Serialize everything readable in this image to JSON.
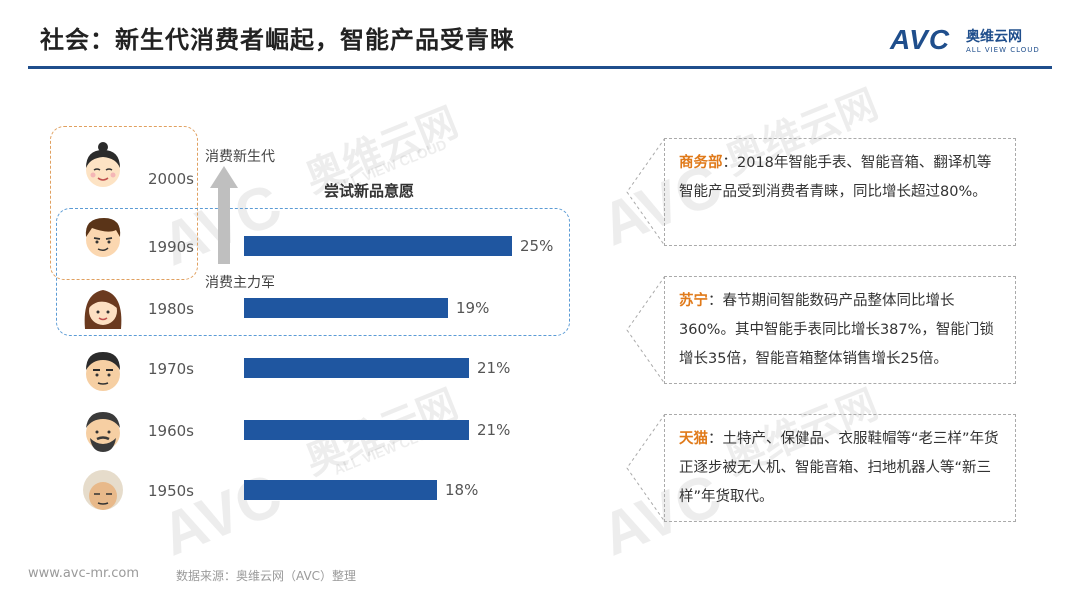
{
  "header": {
    "title": "社会：新生代消费者崛起，智能产品受青睐",
    "logo_avc": "AVC",
    "logo_cn": "奥维云网",
    "logo_en": "ALL VIEW CLOUD"
  },
  "watermark": {
    "cn": "奥维云网",
    "en": "ALL VIEW CLOUD",
    "avc": "AVC"
  },
  "chart": {
    "title": "尝试新品意愿",
    "label_new_gen": "消费新生代",
    "label_main_force": "消费主力军"
  },
  "chart_data": {
    "type": "bar",
    "title": "尝试新品意愿",
    "categories": [
      "2000s",
      "1990s",
      "1980s",
      "1970s",
      "1960s",
      "1950s"
    ],
    "values": [
      null,
      25,
      19,
      21,
      21,
      18
    ],
    "labels": [
      "",
      "25%",
      "19%",
      "21%",
      "21%",
      "18%"
    ],
    "unit": "%",
    "orientation": "horizontal",
    "color": "#1f56a0",
    "xlim": [
      0,
      25
    ]
  },
  "cards": [
    {
      "head": "商务部",
      "text": "：2018年智能手表、智能音箱、翻译机等智能产品受到消费者青睐，同比增长超过80%。"
    },
    {
      "head": "苏宁",
      "text": "：春节期间智能数码产品整体同比增长360%。其中智能手表同比增长387%，智能门锁增长35倍，智能音箱整体销售增长25倍。"
    },
    {
      "head": "天猫",
      "text": "：土特产、保健品、衣服鞋帽等“老三样”年货正逐步被无人机、智能音箱、扫地机器人等“新三样”年货取代。"
    }
  ],
  "footer": {
    "url": "www.avc-mr.com",
    "source": "数据来源：奥维云网（AVC）整理"
  },
  "colors": {
    "brand": "#1f4e8c",
    "bar": "#1f56a0",
    "accent": "#e07a1a"
  }
}
